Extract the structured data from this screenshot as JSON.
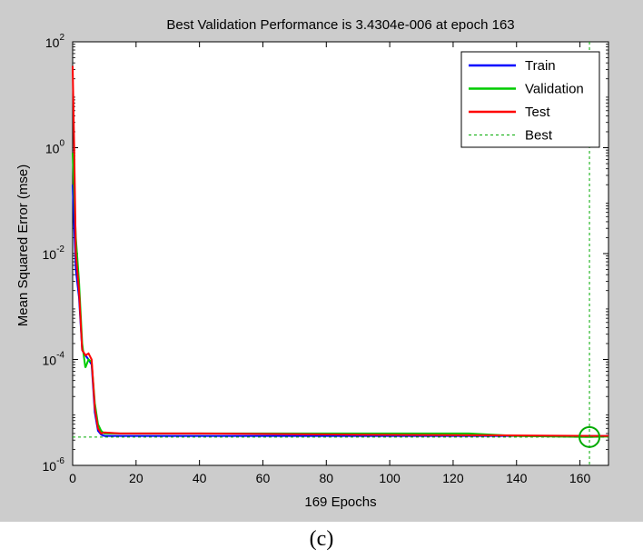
{
  "chart_data": {
    "type": "line",
    "title": "Best Validation Performance is 3.4304e-006 at epoch 163",
    "xlabel": "169 Epochs",
    "ylabel": "Mean Squared Error  (mse)",
    "xlim": [
      0,
      169
    ],
    "ylim_log10": [
      -6,
      2
    ],
    "yscale": "log",
    "x_ticks": [
      0,
      20,
      40,
      60,
      80,
      100,
      120,
      140,
      160
    ],
    "y_ticks": [
      {
        "base": "10",
        "exp": "2",
        "value": 100
      },
      {
        "base": "10",
        "exp": "0",
        "value": 1
      },
      {
        "base": "10",
        "exp": "-2",
        "value": 0.01
      },
      {
        "base": "10",
        "exp": "-4",
        "value": 0.0001
      },
      {
        "base": "10",
        "exp": "-6",
        "value": 1e-06
      }
    ],
    "legend_position": "top-right",
    "best": {
      "epoch": 163,
      "value": 3.4304e-06
    },
    "series": [
      {
        "name": "Train",
        "color": "#0000ff",
        "x": [
          0,
          1,
          2,
          3,
          4,
          5,
          6,
          7,
          8,
          9,
          10,
          15,
          20,
          30,
          60,
          100,
          140,
          163,
          169
        ],
        "y": [
          0.2,
          0.005,
          0.0015,
          0.00015,
          0.00012,
          0.0001,
          8e-05,
          1e-05,
          4.5e-06,
          3.8e-06,
          3.6e-06,
          3.6e-06,
          3.6e-06,
          3.6e-06,
          3.6e-06,
          3.6e-06,
          3.6e-06,
          3.6e-06,
          3.6e-06
        ]
      },
      {
        "name": "Validation",
        "color": "#00cc00",
        "x": [
          0,
          1,
          2,
          3,
          4,
          5,
          6,
          7,
          8,
          9,
          10,
          15,
          20,
          40,
          80,
          125,
          140,
          163,
          169
        ],
        "y": [
          0.8,
          0.02,
          0.003,
          0.0002,
          7e-05,
          0.0001,
          9e-05,
          1.5e-05,
          6e-06,
          4.5e-06,
          4e-06,
          4e-06,
          4e-06,
          4e-06,
          4e-06,
          4e-06,
          3.6e-06,
          3.4304e-06,
          3.5e-06
        ]
      },
      {
        "name": "Test",
        "color": "#ff0000",
        "x": [
          0,
          0.5,
          1,
          2,
          3,
          4,
          5,
          6,
          7,
          8,
          9,
          10,
          15,
          20,
          40,
          90,
          130,
          163,
          169
        ],
        "y": [
          35,
          1.0,
          0.01,
          0.002,
          0.00015,
          0.00012,
          0.00013,
          0.0001,
          1.2e-05,
          5e-06,
          4e-06,
          4.2e-06,
          4e-06,
          4e-06,
          4e-06,
          3.8e-06,
          3.7e-06,
          3.6e-06,
          3.6e-06
        ]
      }
    ],
    "best_label": "Best",
    "best_color": "#00aa00"
  },
  "caption": "(c)"
}
